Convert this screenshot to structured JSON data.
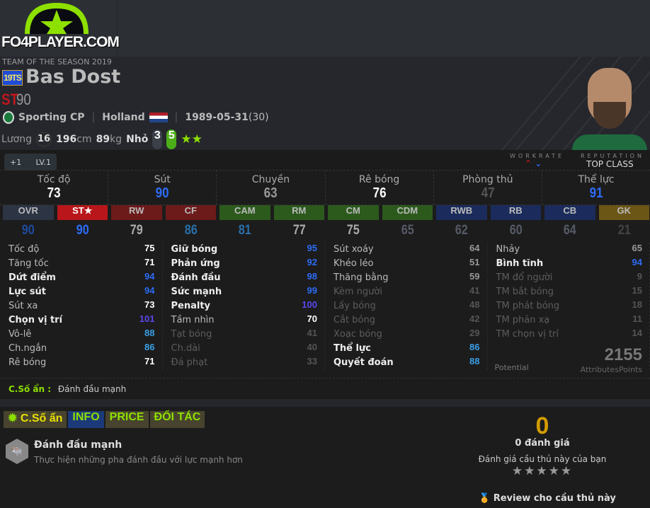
{
  "site": {
    "logo_text": "FO4PLAYER.COM"
  },
  "player": {
    "season": "TEAM OF THE SEASON 2019",
    "badge": "19TS",
    "name": "Bas Dost",
    "position": "ST",
    "ovr": "90",
    "club": "Sporting CP",
    "nation": "Holland",
    "birthdate": "1989-05-31",
    "age": "(30)",
    "salary_label": "Lương",
    "salary": "16",
    "height": "196",
    "height_unit": "cm",
    "weight": "89",
    "weight_unit": "kg",
    "foot_label": "Nhỏ",
    "weak_foot": "3",
    "strong_foot": "5",
    "skill_stars": 2
  },
  "upgrade": {
    "plus": "+1",
    "level": "LV.1"
  },
  "workrate": {
    "label": "WORKRATE",
    "attack": "high",
    "defense": "low"
  },
  "reputation": {
    "label": "REPUTATION",
    "value": "TOP CLASS"
  },
  "main_stats": [
    {
      "label": "Tốc độ",
      "value": "73",
      "tone": "white"
    },
    {
      "label": "Sút",
      "value": "90",
      "tone": "blue"
    },
    {
      "label": "Chuyền",
      "value": "63",
      "tone": "gray"
    },
    {
      "label": "Rê bóng",
      "value": "76",
      "tone": "white"
    },
    {
      "label": "Phòng thủ",
      "value": "47",
      "tone": "dim"
    },
    {
      "label": "Thể lực",
      "value": "91",
      "tone": "blue"
    }
  ],
  "positions": [
    {
      "label": "OVR",
      "value": "90",
      "bg": "#2d3443",
      "color": "#1d4a9e"
    },
    {
      "label": "ST★",
      "value": "90",
      "bg": "#b8161a",
      "color": "#2d6cf5"
    },
    {
      "label": "RW",
      "value": "79",
      "bg": "#6c1a1a",
      "color": "#aaaaaa"
    },
    {
      "label": "CF",
      "value": "86",
      "bg": "#6c1a1a",
      "color": "#2a6fa8"
    },
    {
      "label": "CAM",
      "value": "81",
      "bg": "#2c5a1c",
      "color": "#2a6fa8"
    },
    {
      "label": "RM",
      "value": "77",
      "bg": "#2c5a1c",
      "color": "#aaaaaa"
    },
    {
      "label": "CM",
      "value": "75",
      "bg": "#2c5a1c",
      "color": "#aaaaaa"
    },
    {
      "label": "CDM",
      "value": "65",
      "bg": "#2c5a1c",
      "color": "#555a66"
    },
    {
      "label": "RWB",
      "value": "62",
      "bg": "#1b2c5c",
      "color": "#555a66"
    },
    {
      "label": "RB",
      "value": "60",
      "bg": "#1b2c5c",
      "color": "#555a66"
    },
    {
      "label": "CB",
      "value": "64",
      "bg": "#1b2c5c",
      "color": "#555a66"
    },
    {
      "label": "GK",
      "value": "21",
      "bg": "#6b5616",
      "color": "#444"
    }
  ],
  "attributes": [
    [
      {
        "label": "Tốc độ",
        "value": "75",
        "style": "normal",
        "tone": "white"
      },
      {
        "label": "Tăng tốc",
        "value": "71",
        "style": "normal",
        "tone": "white"
      },
      {
        "label": "Dứt điểm",
        "value": "94",
        "style": "bold",
        "tone": "blue"
      },
      {
        "label": "Lực sút",
        "value": "94",
        "style": "bold",
        "tone": "blue"
      },
      {
        "label": "Sút xa",
        "value": "73",
        "style": "normal",
        "tone": "white"
      },
      {
        "label": "Chọn vị trí",
        "value": "101",
        "style": "bold",
        "tone": "purple"
      },
      {
        "label": "Vô-lê",
        "value": "88",
        "style": "normal",
        "tone": "lightblue"
      },
      {
        "label": "Ch.ngắn",
        "value": "86",
        "style": "normal",
        "tone": "lightblue"
      },
      {
        "label": "Rê bóng",
        "value": "71",
        "style": "normal",
        "tone": "white"
      }
    ],
    [
      {
        "label": "Giữ bóng",
        "value": "95",
        "style": "bold",
        "tone": "blue"
      },
      {
        "label": "Phản ứng",
        "value": "92",
        "style": "bold",
        "tone": "blue"
      },
      {
        "label": "Đánh đầu",
        "value": "98",
        "style": "bold",
        "tone": "blue"
      },
      {
        "label": "Sức mạnh",
        "value": "99",
        "style": "bold",
        "tone": "blue"
      },
      {
        "label": "Penalty",
        "value": "100",
        "style": "bold",
        "tone": "purple"
      },
      {
        "label": "Tầm nhìn",
        "value": "70",
        "style": "normal",
        "tone": "white"
      },
      {
        "label": "Tạt bóng",
        "value": "41",
        "style": "dim",
        "tone": "dim"
      },
      {
        "label": "Ch.dài",
        "value": "40",
        "style": "dim",
        "tone": "dim"
      },
      {
        "label": "Đá phạt",
        "value": "33",
        "style": "dim",
        "tone": "dim"
      }
    ],
    [
      {
        "label": "Sút xoáy",
        "value": "64",
        "style": "normal",
        "tone": "gray"
      },
      {
        "label": "Khéo léo",
        "value": "51",
        "style": "normal",
        "tone": "gray"
      },
      {
        "label": "Thăng bằng",
        "value": "59",
        "style": "normal",
        "tone": "gray"
      },
      {
        "label": "Kèm người",
        "value": "41",
        "style": "dim",
        "tone": "dim"
      },
      {
        "label": "Lấy bóng",
        "value": "48",
        "style": "dim",
        "tone": "dim"
      },
      {
        "label": "Cắt bóng",
        "value": "42",
        "style": "dim",
        "tone": "dim"
      },
      {
        "label": "Xoạc bóng",
        "value": "29",
        "style": "dim",
        "tone": "dim"
      },
      {
        "label": "Thể lực",
        "value": "86",
        "style": "bold",
        "tone": "lightblue"
      },
      {
        "label": "Quyết đoán",
        "value": "88",
        "style": "bold",
        "tone": "lightblue"
      }
    ],
    [
      {
        "label": "Nhảy",
        "value": "65",
        "style": "normal",
        "tone": "gray"
      },
      {
        "label": "Bình tĩnh",
        "value": "94",
        "style": "bold",
        "tone": "blue"
      },
      {
        "label": "TM đổ người",
        "value": "9",
        "style": "dim",
        "tone": "dim"
      },
      {
        "label": "TM bắt bóng",
        "value": "15",
        "style": "dim",
        "tone": "dim"
      },
      {
        "label": "TM phát bóng",
        "value": "18",
        "style": "dim",
        "tone": "dim"
      },
      {
        "label": "TM phản xạ",
        "value": "11",
        "style": "dim",
        "tone": "dim"
      },
      {
        "label": "TM chọn vị trí",
        "value": "14",
        "style": "dim",
        "tone": "dim"
      }
    ]
  ],
  "potential": {
    "label": "Potential",
    "points": "2155",
    "points_label": "AttributesPoints"
  },
  "hidden_trait": {
    "label": "C.Số ẩn :",
    "value": "Đánh đầu mạnh"
  },
  "tabs": [
    "C.Số ẩn",
    "INFO",
    "PRICE",
    "ĐỐI TÁC"
  ],
  "trait": {
    "name": "Đánh đầu mạnh",
    "description": "Thực hiện những pha đánh đầu với lực mạnh hơn",
    "icon": "buffalo-icon"
  },
  "rating": {
    "value": "0",
    "count": "0 đánh giá",
    "prompt": "Đánh giá cầu thủ này của bạn",
    "stars": "★★★★★"
  },
  "review": {
    "label": "Review cho cầu thủ này"
  }
}
